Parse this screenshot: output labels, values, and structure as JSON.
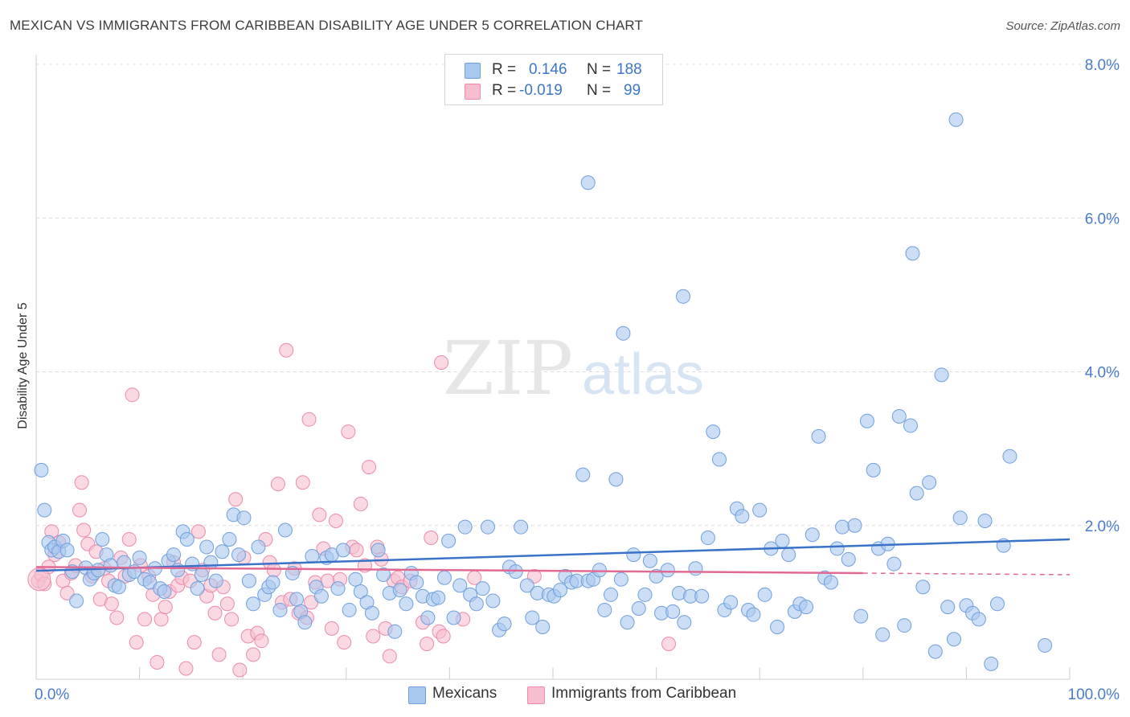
{
  "header": {
    "title": "MEXICAN VS IMMIGRANTS FROM CARIBBEAN DISABILITY AGE UNDER 5 CORRELATION CHART",
    "source": "Source: ZipAtlas.com"
  },
  "legend": {
    "rows": [
      {
        "r_label": "R =",
        "r_value": "0.146",
        "n_label": "N =",
        "n_value": "188"
      },
      {
        "r_label": "R =",
        "r_value": "-0.019",
        "n_label": "N =",
        "n_value": "99"
      }
    ]
  },
  "bottom_legend": {
    "items": [
      {
        "label": "Mexicans"
      },
      {
        "label": "Immigrants from Caribbean"
      }
    ]
  },
  "watermark": {
    "zip": "ZIP",
    "atlas": "atlas"
  },
  "colors": {
    "blue_fill": "#a9c8ee",
    "blue_stroke": "#6f9fdc",
    "blue_line": "#3a72c8",
    "pink_fill": "#f6bfd0",
    "pink_stroke": "#ec8aa8",
    "pink_line": "#e06a93",
    "grid": "#dcdcdc",
    "axis_text": "#4a7bd0"
  },
  "chart_data": {
    "type": "scatter",
    "title": "MEXICAN VS IMMIGRANTS FROM CARIBBEAN DISABILITY AGE UNDER 5 CORRELATION CHART",
    "xlabel": "",
    "ylabel": "Disability Age Under 5",
    "xlim": [
      0,
      100
    ],
    "ylim": [
      0,
      8.0
    ],
    "x_tick_labels": [
      "0.0%",
      "100.0%"
    ],
    "y_ticks": [
      2.0,
      4.0,
      6.0,
      8.0
    ],
    "y_tick_labels": [
      "2.0%",
      "4.0%",
      "6.0%",
      "8.0%"
    ],
    "grid": true,
    "legend_position": "top-center",
    "series": [
      {
        "name": "Mexicans",
        "r": 0.146,
        "n": 188,
        "trend": {
          "x": [
            0,
            100
          ],
          "y": [
            1.41,
            1.82
          ]
        },
        "points": [
          [
            0.5,
            2.72
          ],
          [
            0.8,
            2.2
          ],
          [
            1.2,
            1.78
          ],
          [
            1.5,
            1.68
          ],
          [
            1.8,
            1.72
          ],
          [
            2.2,
            1.66
          ],
          [
            2.6,
            1.8
          ],
          [
            3,
            1.68
          ],
          [
            3.5,
            1.4
          ],
          [
            3.9,
            1.02
          ],
          [
            4.8,
            1.45
          ],
          [
            5.2,
            1.3
          ],
          [
            5.6,
            1.38
          ],
          [
            6,
            1.42
          ],
          [
            6.4,
            1.82
          ],
          [
            6.8,
            1.62
          ],
          [
            7.2,
            1.48
          ],
          [
            7.6,
            1.22
          ],
          [
            8,
            1.2
          ],
          [
            8.5,
            1.52
          ],
          [
            9,
            1.36
          ],
          [
            9.5,
            1.4
          ],
          [
            10,
            1.58
          ],
          [
            10.5,
            1.3
          ],
          [
            11,
            1.26
          ],
          [
            11.5,
            1.44
          ],
          [
            12,
            1.18
          ],
          [
            12.4,
            1.14
          ],
          [
            12.8,
            1.54
          ],
          [
            13.3,
            1.62
          ],
          [
            13.7,
            1.42
          ],
          [
            14.2,
            1.92
          ],
          [
            14.6,
            1.82
          ],
          [
            15.1,
            1.5
          ],
          [
            15.6,
            1.18
          ],
          [
            16,
            1.36
          ],
          [
            16.5,
            1.72
          ],
          [
            16.9,
            1.52
          ],
          [
            17.4,
            1.28
          ],
          [
            18,
            1.66
          ],
          [
            18.7,
            1.82
          ],
          [
            19.1,
            2.14
          ],
          [
            19.6,
            1.62
          ],
          [
            20.1,
            2.1
          ],
          [
            20.6,
            1.28
          ],
          [
            21,
            0.98
          ],
          [
            21.5,
            1.72
          ],
          [
            22.1,
            1.1
          ],
          [
            22.5,
            1.2
          ],
          [
            22.9,
            1.26
          ],
          [
            23.6,
            0.9
          ],
          [
            24.1,
            1.94
          ],
          [
            24.8,
            1.38
          ],
          [
            25.2,
            1.04
          ],
          [
            25.6,
            0.88
          ],
          [
            26,
            0.74
          ],
          [
            26.7,
            1.6
          ],
          [
            27.1,
            1.2
          ],
          [
            27.6,
            1.08
          ],
          [
            28.1,
            1.58
          ],
          [
            28.6,
            1.62
          ],
          [
            29.2,
            1.18
          ],
          [
            29.7,
            1.68
          ],
          [
            30.3,
            0.9
          ],
          [
            30.9,
            1.3
          ],
          [
            31.4,
            1.14
          ],
          [
            32,
            1.0
          ],
          [
            32.5,
            0.86
          ],
          [
            33.1,
            1.68
          ],
          [
            33.6,
            1.36
          ],
          [
            34.2,
            1.12
          ],
          [
            34.7,
            0.62
          ],
          [
            35.2,
            1.16
          ],
          [
            35.8,
            0.98
          ],
          [
            36.3,
            1.38
          ],
          [
            36.8,
            1.26
          ],
          [
            37.4,
            1.08
          ],
          [
            37.9,
            0.8
          ],
          [
            38.4,
            1.04
          ],
          [
            38.9,
            1.06
          ],
          [
            39.5,
            1.32
          ],
          [
            39.9,
            1.8
          ],
          [
            40.4,
            0.8
          ],
          [
            41,
            1.22
          ],
          [
            41.5,
            1.98
          ],
          [
            42,
            1.1
          ],
          [
            42.6,
            0.98
          ],
          [
            43.2,
            1.18
          ],
          [
            43.7,
            1.98
          ],
          [
            44.2,
            1.02
          ],
          [
            44.8,
            0.64
          ],
          [
            45.3,
            0.72
          ],
          [
            45.8,
            1.46
          ],
          [
            46.4,
            1.4
          ],
          [
            46.9,
            1.98
          ],
          [
            47.5,
            1.22
          ],
          [
            48,
            0.8
          ],
          [
            48.5,
            1.12
          ],
          [
            49,
            0.68
          ],
          [
            49.6,
            1.1
          ],
          [
            50.1,
            1.08
          ],
          [
            50.7,
            1.16
          ],
          [
            51.2,
            1.34
          ],
          [
            51.8,
            1.26
          ],
          [
            52.3,
            1.28
          ],
          [
            52.9,
            2.66
          ],
          [
            53.4,
            1.28
          ],
          [
            53.9,
            1.3
          ],
          [
            54.5,
            1.42
          ],
          [
            55,
            0.9
          ],
          [
            55.6,
            1.1
          ],
          [
            56.1,
            2.6
          ],
          [
            56.6,
            1.3
          ],
          [
            57.2,
            0.74
          ],
          [
            57.8,
            1.62
          ],
          [
            58.3,
            0.92
          ],
          [
            58.9,
            1.1
          ],
          [
            59.4,
            1.54
          ],
          [
            60,
            1.34
          ],
          [
            60.5,
            0.86
          ],
          [
            61.1,
            1.42
          ],
          [
            61.6,
            0.88
          ],
          [
            62.2,
            1.12
          ],
          [
            62.7,
            0.74
          ],
          [
            63.3,
            1.08
          ],
          [
            63.8,
            1.44
          ],
          [
            64.4,
            1.08
          ],
          [
            65,
            1.84
          ],
          [
            65.5,
            3.22
          ],
          [
            66.1,
            2.86
          ],
          [
            66.6,
            0.9
          ],
          [
            67.2,
            1.0
          ],
          [
            67.8,
            2.22
          ],
          [
            68.3,
            2.12
          ],
          [
            68.9,
            0.9
          ],
          [
            69.4,
            0.84
          ],
          [
            70,
            2.2
          ],
          [
            70.5,
            1.1
          ],
          [
            71.1,
            1.7
          ],
          [
            71.7,
            0.68
          ],
          [
            72.2,
            1.8
          ],
          [
            72.8,
            1.62
          ],
          [
            73.4,
            0.88
          ],
          [
            73.9,
            0.98
          ],
          [
            74.5,
            0.94
          ],
          [
            75.1,
            1.88
          ],
          [
            75.7,
            3.16
          ],
          [
            76.3,
            1.32
          ],
          [
            76.9,
            1.26
          ],
          [
            77.5,
            1.7
          ],
          [
            78,
            1.98
          ],
          [
            78.6,
            1.56
          ],
          [
            79.2,
            2.0
          ],
          [
            79.8,
            0.82
          ],
          [
            80.4,
            3.36
          ],
          [
            81,
            2.72
          ],
          [
            81.5,
            1.7
          ],
          [
            81.9,
            0.58
          ],
          [
            82.4,
            1.76
          ],
          [
            83,
            1.5
          ],
          [
            83.5,
            3.42
          ],
          [
            84,
            0.7
          ],
          [
            84.6,
            3.3
          ],
          [
            85.2,
            2.42
          ],
          [
            85.8,
            1.2
          ],
          [
            86.4,
            2.56
          ],
          [
            87,
            0.36
          ],
          [
            87.6,
            3.96
          ],
          [
            88.2,
            0.94
          ],
          [
            88.8,
            0.52
          ],
          [
            89.4,
            2.1
          ],
          [
            90,
            0.96
          ],
          [
            90.6,
            0.86
          ],
          [
            91.2,
            0.78
          ],
          [
            91.8,
            2.06
          ],
          [
            92.4,
            0.2
          ],
          [
            93,
            0.98
          ],
          [
            93.6,
            1.74
          ],
          [
            94.2,
            2.9
          ],
          [
            97.6,
            0.44
          ],
          [
            89,
            7.28
          ],
          [
            53.4,
            6.46
          ],
          [
            84.8,
            5.54
          ],
          [
            62.6,
            4.98
          ],
          [
            56.8,
            4.5
          ]
        ]
      },
      {
        "name": "Immigrants from Caribbean",
        "r": -0.019,
        "n": 99,
        "trend": {
          "x": [
            0,
            100
          ],
          "y": [
            1.46,
            1.36
          ],
          "solid_until_x": 80
        },
        "points": [
          [
            0.2,
            1.28
          ],
          [
            0.5,
            1.36
          ],
          [
            0.8,
            1.24
          ],
          [
            1.2,
            1.46
          ],
          [
            1.5,
            1.92
          ],
          [
            1.8,
            1.62
          ],
          [
            2.2,
            1.78
          ],
          [
            2.6,
            1.28
          ],
          [
            3,
            1.12
          ],
          [
            3.4,
            1.38
          ],
          [
            3.8,
            1.48
          ],
          [
            4.2,
            2.2
          ],
          [
            4.4,
            2.56
          ],
          [
            4.6,
            1.94
          ],
          [
            5,
            1.76
          ],
          [
            5.4,
            1.34
          ],
          [
            5.8,
            1.66
          ],
          [
            6.2,
            1.04
          ],
          [
            6.6,
            1.44
          ],
          [
            7,
            1.28
          ],
          [
            7.3,
            0.98
          ],
          [
            7.8,
            0.8
          ],
          [
            8.2,
            1.58
          ],
          [
            8.6,
            1.34
          ],
          [
            9,
            1.82
          ],
          [
            9.3,
            3.7
          ],
          [
            9.7,
            0.48
          ],
          [
            10.1,
            1.48
          ],
          [
            10.5,
            0.78
          ],
          [
            10.9,
            1.34
          ],
          [
            11.3,
            1.1
          ],
          [
            11.7,
            0.22
          ],
          [
            12.1,
            0.78
          ],
          [
            12.5,
            0.94
          ],
          [
            12.9,
            1.14
          ],
          [
            13.3,
            1.52
          ],
          [
            13.7,
            1.22
          ],
          [
            14.1,
            1.32
          ],
          [
            14.5,
            0.14
          ],
          [
            14.9,
            1.28
          ],
          [
            15.3,
            0.48
          ],
          [
            15.7,
            1.92
          ],
          [
            16.1,
            1.42
          ],
          [
            16.5,
            1.08
          ],
          [
            16.9,
            1.22
          ],
          [
            17.3,
            0.86
          ],
          [
            17.7,
            0.32
          ],
          [
            18.1,
            1.2
          ],
          [
            18.5,
            0.98
          ],
          [
            18.9,
            0.78
          ],
          [
            19.3,
            2.34
          ],
          [
            19.7,
            0.12
          ],
          [
            20.1,
            1.58
          ],
          [
            20.5,
            0.56
          ],
          [
            21,
            0.32
          ],
          [
            21.4,
            0.6
          ],
          [
            21.8,
            0.5
          ],
          [
            22.2,
            1.82
          ],
          [
            22.6,
            1.52
          ],
          [
            23,
            1.42
          ],
          [
            23.4,
            2.54
          ],
          [
            23.8,
            1.0
          ],
          [
            24.2,
            4.28
          ],
          [
            24.6,
            1.04
          ],
          [
            25,
            1.44
          ],
          [
            25.4,
            0.86
          ],
          [
            25.8,
            2.56
          ],
          [
            26.2,
            0.8
          ],
          [
            26.6,
            1.0
          ],
          [
            27,
            1.26
          ],
          [
            27.4,
            2.14
          ],
          [
            27.8,
            1.7
          ],
          [
            28.2,
            1.28
          ],
          [
            28.6,
            0.66
          ],
          [
            29,
            2.06
          ],
          [
            29.4,
            1.3
          ],
          [
            29.8,
            0.48
          ],
          [
            30.2,
            3.22
          ],
          [
            30.6,
            1.72
          ],
          [
            31,
            1.68
          ],
          [
            31.4,
            2.28
          ],
          [
            31.8,
            1.48
          ],
          [
            32.2,
            2.76
          ],
          [
            32.6,
            0.56
          ],
          [
            33,
            1.72
          ],
          [
            33.4,
            1.56
          ],
          [
            33.8,
            0.66
          ],
          [
            34.2,
            0.3
          ],
          [
            34.6,
            1.28
          ],
          [
            35,
            1.32
          ],
          [
            35.4,
            1.2
          ],
          [
            36.2,
            1.28
          ],
          [
            37.4,
            0.74
          ],
          [
            37.8,
            0.46
          ],
          [
            38.2,
            1.84
          ],
          [
            39,
            0.62
          ],
          [
            39.4,
            0.56
          ],
          [
            41.3,
            0.78
          ],
          [
            42.4,
            1.32
          ]
        ],
        "extra_points": [
          [
            26.4,
            3.38
          ],
          [
            39.2,
            4.12
          ],
          [
            48.2,
            1.34
          ],
          [
            61.2,
            0.46
          ]
        ]
      }
    ]
  }
}
